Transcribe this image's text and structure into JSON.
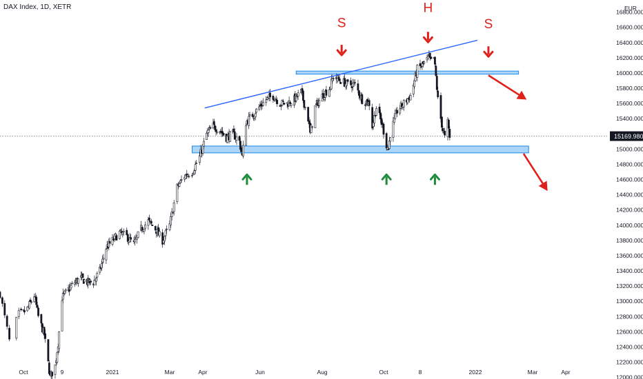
{
  "header": {
    "title": "DAX Index, 1D, XETR"
  },
  "colors": {
    "candle": "#131722",
    "zone_fill": "#90c8f7",
    "zone_stroke": "#1e88e5",
    "trendline": "#2962ff",
    "red": "#e0201b",
    "green": "#1e8c3a",
    "price_badge": "#131722"
  },
  "chart_data": {
    "type": "candlestick",
    "title": "DAX Index, 1D, XETR",
    "currency": "EUR",
    "ylim": [
      11960,
      16800
    ],
    "y_ticks": [
      "16800.000",
      "16600.000",
      "16400.000",
      "16200.000",
      "16000.000",
      "15800.000",
      "15600.000",
      "15400.000",
      "15200.000",
      "15000.000",
      "14800.000",
      "14600.000",
      "14400.000",
      "14200.000",
      "14000.000",
      "13800.000",
      "13600.000",
      "13400.000",
      "13200.000",
      "13000.000",
      "12800.000",
      "12600.000",
      "12400.000",
      "12200.000",
      "12000.000"
    ],
    "x_ticks": [
      {
        "label": "Oct",
        "date": "2020-10-01"
      },
      {
        "label": "9",
        "date": "2020-11-09"
      },
      {
        "label": "2021",
        "date": "2021-01-04"
      },
      {
        "label": "Mar",
        "date": "2021-03-01"
      },
      {
        "label": "Apr",
        "date": "2021-04-01"
      },
      {
        "label": "Jun",
        "date": "2021-06-01"
      },
      {
        "label": "Aug",
        "date": "2021-08-02"
      },
      {
        "label": "Oct",
        "date": "2021-10-01"
      },
      {
        "label": "8",
        "date": "2021-11-08"
      },
      {
        "label": "2022",
        "date": "2022-01-03"
      },
      {
        "label": "Mar",
        "date": "2022-03-01"
      },
      {
        "label": "Apr",
        "date": "2022-04-01"
      }
    ],
    "last_price": "15169.980",
    "series_close_path": [
      [
        "2020-09-21",
        13100
      ],
      [
        "2020-09-25",
        12480
      ],
      [
        "2020-09-29",
        12830
      ],
      [
        "2020-10-05",
        12900
      ],
      [
        "2020-10-12",
        13080
      ],
      [
        "2020-10-16",
        12800
      ],
      [
        "2020-10-22",
        12560
      ],
      [
        "2020-10-28",
        12000
      ],
      [
        "2020-11-02",
        12150
      ],
      [
        "2020-11-05",
        12450
      ],
      [
        "2020-11-09",
        13050
      ],
      [
        "2020-11-16",
        13150
      ],
      [
        "2020-11-23",
        13250
      ],
      [
        "2020-11-30",
        13300
      ],
      [
        "2020-12-07",
        13250
      ],
      [
        "2020-12-14",
        13250
      ],
      [
        "2020-12-21",
        13400
      ],
      [
        "2020-12-28",
        13700
      ],
      [
        "2021-01-04",
        13800
      ],
      [
        "2021-01-11",
        13900
      ],
      [
        "2021-01-18",
        13850
      ],
      [
        "2021-01-25",
        13750
      ],
      [
        "2021-02-01",
        13950
      ],
      [
        "2021-02-08",
        14050
      ],
      [
        "2021-02-15",
        13950
      ],
      [
        "2021-02-22",
        13800
      ],
      [
        "2021-03-01",
        14000
      ],
      [
        "2021-03-08",
        14500
      ],
      [
        "2021-03-15",
        14650
      ],
      [
        "2021-03-22",
        14700
      ],
      [
        "2021-03-29",
        14900
      ],
      [
        "2021-04-05",
        15200
      ],
      [
        "2021-04-12",
        15300
      ],
      [
        "2021-04-19",
        15250
      ],
      [
        "2021-04-26",
        15150
      ],
      [
        "2021-05-03",
        15200
      ],
      [
        "2021-05-10",
        15100
      ],
      [
        "2021-05-13",
        14900
      ],
      [
        "2021-05-17",
        15350
      ],
      [
        "2021-05-24",
        15450
      ],
      [
        "2021-05-31",
        15550
      ],
      [
        "2021-06-07",
        15650
      ],
      [
        "2021-06-14",
        15700
      ],
      [
        "2021-06-21",
        15600
      ],
      [
        "2021-06-28",
        15600
      ],
      [
        "2021-07-05",
        15650
      ],
      [
        "2021-07-12",
        15750
      ],
      [
        "2021-07-19",
        15400
      ],
      [
        "2021-07-21",
        15200
      ],
      [
        "2021-07-26",
        15550
      ],
      [
        "2021-08-02",
        15700
      ],
      [
        "2021-08-09",
        15800
      ],
      [
        "2021-08-13",
        15950
      ],
      [
        "2021-08-20",
        15900
      ],
      [
        "2021-08-27",
        15850
      ],
      [
        "2021-09-03",
        15850
      ],
      [
        "2021-09-10",
        15650
      ],
      [
        "2021-09-17",
        15600
      ],
      [
        "2021-09-20",
        15300
      ],
      [
        "2021-09-24",
        15550
      ],
      [
        "2021-09-30",
        15300
      ],
      [
        "2021-10-04",
        15050
      ],
      [
        "2021-10-06",
        15000
      ],
      [
        "2021-10-08",
        15200
      ],
      [
        "2021-10-15",
        15500
      ],
      [
        "2021-10-22",
        15600
      ],
      [
        "2021-10-29",
        15700
      ],
      [
        "2021-11-05",
        16050
      ],
      [
        "2021-11-10",
        16100
      ],
      [
        "2021-11-17",
        16200
      ],
      [
        "2021-11-19",
        16150
      ],
      [
        "2021-11-22",
        16200
      ],
      [
        "2021-11-24",
        15950
      ],
      [
        "2021-11-26",
        15650
      ],
      [
        "2021-11-29",
        15400
      ],
      [
        "2021-12-01",
        15250
      ],
      [
        "2021-12-03",
        15150
      ],
      [
        "2021-12-06",
        15350
      ],
      [
        "2021-12-08",
        15150
      ]
    ],
    "zones": [
      {
        "name": "neckline-resistance",
        "y_range": [
          15985,
          16025
        ],
        "x_range": [
          "2021-07-07",
          "2022-02-15"
        ]
      },
      {
        "name": "support",
        "y_range": [
          14950,
          15040
        ],
        "x_range": [
          "2021-03-22",
          "2022-02-25"
        ]
      }
    ],
    "trendline": {
      "start": [
        "2021-04-03",
        15540
      ],
      "end": [
        "2022-01-05",
        16430
      ]
    },
    "annotations": [
      {
        "label": "S",
        "type": "letter",
        "date": "2021-08-21",
        "price": 16600
      },
      {
        "label": "H",
        "type": "letter",
        "date": "2021-11-16",
        "price": 16800
      },
      {
        "label": "S",
        "type": "letter",
        "date": "2022-01-16",
        "price": 16590
      },
      {
        "label": "",
        "type": "arrow-down",
        "date": "2021-08-21",
        "price": 16280
      },
      {
        "label": "",
        "type": "arrow-down",
        "date": "2021-11-16",
        "price": 16450
      },
      {
        "label": "",
        "type": "arrow-down",
        "date": "2022-01-16",
        "price": 16260
      },
      {
        "label": "",
        "type": "arrow-up",
        "date": "2021-05-18",
        "price": 14620
      },
      {
        "label": "",
        "type": "arrow-up",
        "date": "2021-10-04",
        "price": 14620
      },
      {
        "label": "",
        "type": "arrow-up",
        "date": "2021-11-23",
        "price": 14620
      }
    ],
    "projection_arrows": [
      {
        "from": [
          "2022-01-16",
          15970
        ],
        "to": [
          "2022-02-23",
          15650
        ]
      },
      {
        "from": [
          "2022-02-20",
          14940
        ],
        "to": [
          "2022-03-15",
          14450
        ]
      }
    ]
  }
}
